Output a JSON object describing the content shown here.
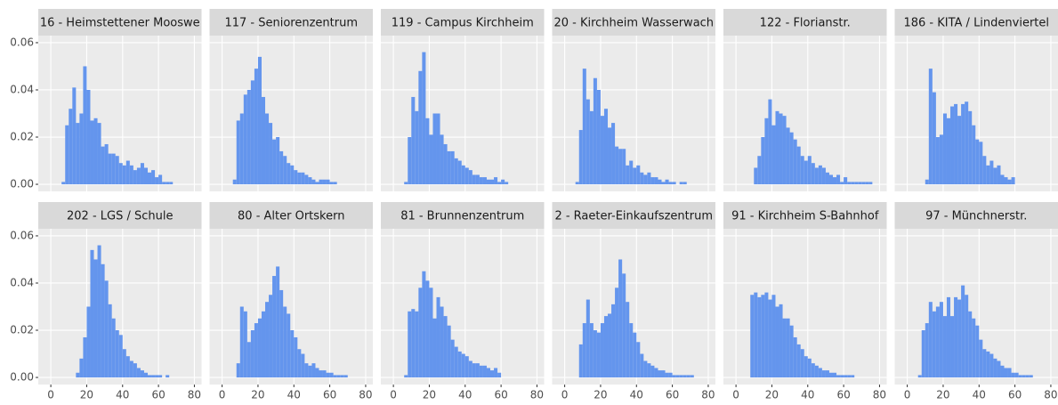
{
  "chart_data": [
    {
      "type": "histogram",
      "title": "16 - Heimstettener Mooswe",
      "color": "#6495ed",
      "grid": true,
      "xlim": [
        -7,
        84
      ],
      "ylim": [
        -0.003,
        0.063
      ],
      "xticks": [
        0,
        20,
        40,
        60,
        80
      ],
      "yticks": [
        {
          "value": 0,
          "label": "0.00"
        },
        0.02,
        0.04,
        0.06
      ],
      "bins": [
        6,
        8,
        10,
        12,
        14,
        16,
        18,
        20,
        22,
        24,
        26,
        28,
        30,
        32,
        34,
        36,
        38,
        40,
        42,
        44,
        46,
        48,
        50,
        52,
        54,
        56,
        58,
        60,
        62,
        64,
        66,
        68,
        70,
        72,
        74,
        76,
        78,
        80
      ],
      "values": [
        0.001,
        0.025,
        0.032,
        0.041,
        0.026,
        0.03,
        0.05,
        0.04,
        0.027,
        0.028,
        0.026,
        0.016,
        0.017,
        0.013,
        0.013,
        0.012,
        0.009,
        0.008,
        0.01,
        0.008,
        0.006,
        0.007,
        0.009,
        0.007,
        0.005,
        0.006,
        0.003,
        0.004,
        0.001,
        0.001,
        0.001,
        0,
        0,
        0,
        0,
        0,
        0
      ]
    },
    {
      "type": "histogram",
      "title": "117 - Seniorenzentrum",
      "color": "#6495ed",
      "grid": true,
      "xlim": [
        -7,
        84
      ],
      "ylim": [
        -0.003,
        0.063
      ],
      "xticks": [
        0,
        20,
        40,
        60,
        80
      ],
      "yticks": [
        {
          "value": 0,
          "label": "0.00"
        },
        0.02,
        0.04,
        0.06
      ],
      "bins": [
        6,
        8,
        10,
        12,
        14,
        16,
        18,
        20,
        22,
        24,
        26,
        28,
        30,
        32,
        34,
        36,
        38,
        40,
        42,
        44,
        46,
        48,
        50,
        52,
        54,
        56,
        58,
        60,
        62,
        64,
        66,
        68,
        70,
        72,
        74,
        76,
        78,
        80
      ],
      "values": [
        0.002,
        0.027,
        0.03,
        0.038,
        0.04,
        0.044,
        0.049,
        0.054,
        0.037,
        0.03,
        0.026,
        0.019,
        0.02,
        0.014,
        0.012,
        0.009,
        0.008,
        0.006,
        0.005,
        0.005,
        0.004,
        0.003,
        0.002,
        0.001,
        0.002,
        0.002,
        0.002,
        0.001,
        0.001,
        0,
        0,
        0,
        0,
        0,
        0,
        0,
        0
      ]
    },
    {
      "type": "histogram",
      "title": "119 - Campus Kirchheim",
      "color": "#6495ed",
      "grid": true,
      "xlim": [
        -7,
        84
      ],
      "ylim": [
        -0.003,
        0.063
      ],
      "xticks": [
        0,
        20,
        40,
        60,
        80
      ],
      "yticks": [
        {
          "value": 0,
          "label": "0.00"
        },
        0.02,
        0.04,
        0.06
      ],
      "bins": [
        6,
        8,
        10,
        12,
        14,
        16,
        18,
        20,
        22,
        24,
        26,
        28,
        30,
        32,
        34,
        36,
        38,
        40,
        42,
        44,
        46,
        48,
        50,
        52,
        54,
        56,
        58,
        60,
        62,
        64,
        66,
        68,
        70,
        72,
        74,
        76,
        78,
        80
      ],
      "values": [
        0.001,
        0.02,
        0.037,
        0.031,
        0.048,
        0.056,
        0.028,
        0.021,
        0.03,
        0.03,
        0.021,
        0.017,
        0.014,
        0.014,
        0.011,
        0.01,
        0.008,
        0.007,
        0.006,
        0.004,
        0.004,
        0.003,
        0.003,
        0.002,
        0.002,
        0.003,
        0.001,
        0.002,
        0.001,
        0,
        0,
        0,
        0,
        0,
        0,
        0,
        0
      ]
    },
    {
      "type": "histogram",
      "title": "20 - Kirchheim Wasserwach",
      "color": "#6495ed",
      "grid": true,
      "xlim": [
        -7,
        84
      ],
      "ylim": [
        -0.003,
        0.063
      ],
      "xticks": [
        0,
        20,
        40,
        60,
        80
      ],
      "yticks": [
        {
          "value": 0,
          "label": "0.00"
        },
        0.02,
        0.04,
        0.06
      ],
      "bins": [
        6,
        8,
        10,
        12,
        14,
        16,
        18,
        20,
        22,
        24,
        26,
        28,
        30,
        32,
        34,
        36,
        38,
        40,
        42,
        44,
        46,
        48,
        50,
        52,
        54,
        56,
        58,
        60,
        62,
        64,
        66,
        68,
        70,
        72,
        74,
        76,
        78,
        80
      ],
      "values": [
        0.001,
        0.023,
        0.049,
        0.036,
        0.031,
        0.045,
        0.04,
        0.029,
        0.032,
        0.024,
        0.026,
        0.016,
        0.015,
        0.015,
        0.008,
        0.01,
        0.007,
        0.008,
        0.005,
        0.004,
        0.005,
        0.003,
        0.003,
        0.002,
        0.001,
        0.002,
        0.001,
        0.001,
        0,
        0.001,
        0.001,
        0,
        0,
        0,
        0,
        0,
        0
      ]
    },
    {
      "type": "histogram",
      "title": "122 - Florianstr.",
      "color": "#6495ed",
      "grid": true,
      "xlim": [
        -7,
        84
      ],
      "ylim": [
        -0.003,
        0.063
      ],
      "xticks": [
        0,
        20,
        40,
        60,
        80
      ],
      "yticks": [
        {
          "value": 0,
          "label": "0.00"
        },
        0.02,
        0.04,
        0.06
      ],
      "bins": [
        6,
        8,
        10,
        12,
        14,
        16,
        18,
        20,
        22,
        24,
        26,
        28,
        30,
        32,
        34,
        36,
        38,
        40,
        42,
        44,
        46,
        48,
        50,
        52,
        54,
        56,
        58,
        60,
        62,
        64,
        66,
        68,
        70,
        72,
        74,
        76,
        78,
        80
      ],
      "values": [
        0,
        0,
        0.007,
        0.012,
        0.02,
        0.028,
        0.036,
        0.025,
        0.031,
        0.03,
        0.029,
        0.024,
        0.022,
        0.019,
        0.016,
        0.012,
        0.01,
        0.012,
        0.009,
        0.007,
        0.008,
        0.007,
        0.005,
        0.004,
        0.003,
        0.004,
        0.001,
        0.003,
        0.001,
        0.001,
        0.001,
        0.001,
        0.001,
        0.001,
        0.001,
        0,
        0
      ]
    },
    {
      "type": "histogram",
      "title": "186 - KITA / Lindenviertel",
      "color": "#6495ed",
      "grid": true,
      "xlim": [
        -7,
        84
      ],
      "ylim": [
        -0.003,
        0.063
      ],
      "xticks": [
        0,
        20,
        40,
        60,
        80
      ],
      "yticks": [
        {
          "value": 0,
          "label": "0.00"
        },
        0.02,
        0.04,
        0.06
      ],
      "bins": [
        6,
        8,
        10,
        12,
        14,
        16,
        18,
        20,
        22,
        24,
        26,
        28,
        30,
        32,
        34,
        36,
        38,
        40,
        42,
        44,
        46,
        48,
        50,
        52,
        54,
        56,
        58,
        60,
        62,
        64,
        66,
        68,
        70,
        72,
        74,
        76,
        78,
        80
      ],
      "values": [
        0,
        0,
        0.002,
        0.049,
        0.039,
        0.02,
        0.021,
        0.03,
        0.028,
        0.033,
        0.034,
        0.029,
        0.034,
        0.035,
        0.031,
        0.025,
        0.019,
        0.018,
        0.012,
        0.008,
        0.01,
        0.007,
        0.008,
        0.004,
        0.003,
        0.002,
        0.003,
        0,
        0,
        0,
        0,
        0,
        0,
        0,
        0,
        0,
        0
      ]
    },
    {
      "type": "histogram",
      "title": "202 - LGS / Schule",
      "color": "#6495ed",
      "grid": true,
      "xlim": [
        -7,
        84
      ],
      "ylim": [
        -0.003,
        0.063
      ],
      "xticks": [
        0,
        20,
        40,
        60,
        80
      ],
      "yticks": [
        {
          "value": 0,
          "label": "0.00"
        },
        0.02,
        0.04,
        0.06
      ],
      "bins": [
        6,
        8,
        10,
        12,
        14,
        16,
        18,
        20,
        22,
        24,
        26,
        28,
        30,
        32,
        34,
        36,
        38,
        40,
        42,
        44,
        46,
        48,
        50,
        52,
        54,
        56,
        58,
        60,
        62,
        64,
        66,
        68,
        70,
        72,
        74,
        76,
        78,
        80
      ],
      "values": [
        0,
        0,
        0,
        0,
        0.002,
        0.008,
        0.017,
        0.03,
        0.054,
        0.05,
        0.056,
        0.048,
        0.041,
        0.031,
        0.025,
        0.02,
        0.018,
        0.012,
        0.009,
        0.007,
        0.006,
        0.004,
        0.003,
        0.002,
        0.001,
        0.001,
        0.001,
        0.001,
        0,
        0.001,
        0,
        0,
        0,
        0,
        0,
        0,
        0
      ]
    },
    {
      "type": "histogram",
      "title": "80 - Alter Ortskern",
      "color": "#6495ed",
      "grid": true,
      "xlim": [
        -7,
        84
      ],
      "ylim": [
        -0.003,
        0.063
      ],
      "xticks": [
        0,
        20,
        40,
        60,
        80
      ],
      "yticks": [
        {
          "value": 0,
          "label": "0.00"
        },
        0.02,
        0.04,
        0.06
      ],
      "bins": [
        6,
        8,
        10,
        12,
        14,
        16,
        18,
        20,
        22,
        24,
        26,
        28,
        30,
        32,
        34,
        36,
        38,
        40,
        42,
        44,
        46,
        48,
        50,
        52,
        54,
        56,
        58,
        60,
        62,
        64,
        66,
        68,
        70,
        72,
        74,
        76,
        78,
        80
      ],
      "values": [
        0,
        0.006,
        0.03,
        0.028,
        0.015,
        0.02,
        0.023,
        0.025,
        0.028,
        0.032,
        0.035,
        0.043,
        0.047,
        0.037,
        0.03,
        0.027,
        0.02,
        0.017,
        0.012,
        0.01,
        0.006,
        0.005,
        0.006,
        0.004,
        0.003,
        0.003,
        0.002,
        0.002,
        0.001,
        0.001,
        0.001,
        0.001,
        0,
        0,
        0,
        0,
        0
      ]
    },
    {
      "type": "histogram",
      "title": "81 - Brunnenzentrum",
      "color": "#6495ed",
      "grid": true,
      "xlim": [
        -7,
        84
      ],
      "ylim": [
        -0.003,
        0.063
      ],
      "xticks": [
        0,
        20,
        40,
        60,
        80
      ],
      "yticks": [
        {
          "value": 0,
          "label": "0.00"
        },
        0.02,
        0.04,
        0.06
      ],
      "bins": [
        6,
        8,
        10,
        12,
        14,
        16,
        18,
        20,
        22,
        24,
        26,
        28,
        30,
        32,
        34,
        36,
        38,
        40,
        42,
        44,
        46,
        48,
        50,
        52,
        54,
        56,
        58,
        60,
        62,
        64,
        66,
        68,
        70,
        72,
        74,
        76,
        78,
        80
      ],
      "values": [
        0.001,
        0.028,
        0.029,
        0.028,
        0.038,
        0.045,
        0.041,
        0.038,
        0.025,
        0.034,
        0.03,
        0.026,
        0.022,
        0.016,
        0.013,
        0.011,
        0.01,
        0.009,
        0.007,
        0.006,
        0.006,
        0.005,
        0.005,
        0.004,
        0.003,
        0.004,
        0.002,
        0,
        0,
        0,
        0,
        0,
        0,
        0,
        0,
        0,
        0
      ]
    },
    {
      "type": "histogram",
      "title": "2 - Raeter-Einkaufszentrum",
      "color": "#6495ed",
      "grid": true,
      "xlim": [
        -7,
        84
      ],
      "ylim": [
        -0.003,
        0.063
      ],
      "xticks": [
        0,
        20,
        40,
        60,
        80
      ],
      "yticks": [
        {
          "value": 0,
          "label": "0.00"
        },
        0.02,
        0.04,
        0.06
      ],
      "bins": [
        6,
        8,
        10,
        12,
        14,
        16,
        18,
        20,
        22,
        24,
        26,
        28,
        30,
        32,
        34,
        36,
        38,
        40,
        42,
        44,
        46,
        48,
        50,
        52,
        54,
        56,
        58,
        60,
        62,
        64,
        66,
        68,
        70,
        72,
        74,
        76,
        78,
        80
      ],
      "values": [
        0,
        0.014,
        0.023,
        0.033,
        0.023,
        0.02,
        0.019,
        0.023,
        0.026,
        0.027,
        0.031,
        0.038,
        0.05,
        0.044,
        0.032,
        0.023,
        0.019,
        0.015,
        0.01,
        0.007,
        0.006,
        0.005,
        0.004,
        0.003,
        0.003,
        0.002,
        0.002,
        0.001,
        0.001,
        0.001,
        0.001,
        0.001,
        0.001,
        0,
        0,
        0,
        0
      ]
    },
    {
      "type": "histogram",
      "title": "91 - Kirchheim S-Bahnhof",
      "color": "#6495ed",
      "grid": true,
      "xlim": [
        -7,
        84
      ],
      "ylim": [
        -0.003,
        0.063
      ],
      "xticks": [
        0,
        20,
        40,
        60,
        80
      ],
      "yticks": [
        {
          "value": 0,
          "label": "0.00"
        },
        0.02,
        0.04,
        0.06
      ],
      "bins": [
        6,
        8,
        10,
        12,
        14,
        16,
        18,
        20,
        22,
        24,
        26,
        28,
        30,
        32,
        34,
        36,
        38,
        40,
        42,
        44,
        46,
        48,
        50,
        52,
        54,
        56,
        58,
        60,
        62,
        64,
        66,
        68,
        70,
        72,
        74,
        76,
        78,
        80
      ],
      "values": [
        0,
        0.035,
        0.036,
        0.034,
        0.035,
        0.036,
        0.033,
        0.035,
        0.03,
        0.031,
        0.025,
        0.025,
        0.022,
        0.017,
        0.014,
        0.012,
        0.009,
        0.008,
        0.006,
        0.005,
        0.004,
        0.003,
        0.003,
        0.002,
        0.002,
        0.001,
        0.001,
        0.001,
        0.001,
        0.001,
        0,
        0,
        0,
        0,
        0,
        0,
        0
      ]
    },
    {
      "type": "histogram",
      "title": "97 - Münchnerstr.",
      "color": "#6495ed",
      "grid": true,
      "xlim": [
        -7,
        84
      ],
      "ylim": [
        -0.003,
        0.063
      ],
      "xticks": [
        0,
        20,
        40,
        60,
        80
      ],
      "yticks": [
        {
          "value": 0,
          "label": "0.00"
        },
        0.02,
        0.04,
        0.06
      ],
      "bins": [
        6,
        8,
        10,
        12,
        14,
        16,
        18,
        20,
        22,
        24,
        26,
        28,
        30,
        32,
        34,
        36,
        38,
        40,
        42,
        44,
        46,
        48,
        50,
        52,
        54,
        56,
        58,
        60,
        62,
        64,
        66,
        68,
        70,
        72,
        74,
        76,
        78,
        80
      ],
      "values": [
        0.001,
        0.02,
        0.023,
        0.032,
        0.028,
        0.03,
        0.032,
        0.026,
        0.034,
        0.026,
        0.034,
        0.033,
        0.039,
        0.035,
        0.028,
        0.025,
        0.022,
        0.016,
        0.012,
        0.011,
        0.01,
        0.008,
        0.007,
        0.005,
        0.004,
        0.004,
        0.002,
        0.002,
        0.001,
        0.001,
        0.001,
        0.001,
        0,
        0,
        0,
        0,
        0
      ]
    }
  ]
}
